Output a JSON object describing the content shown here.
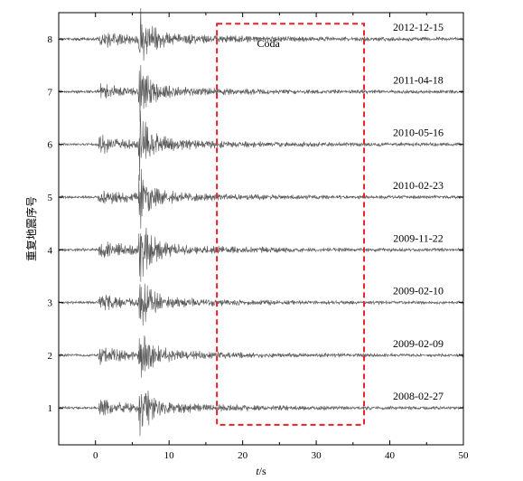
{
  "chart_data": {
    "type": "line",
    "xlabel_italic": "t",
    "xlabel_unit": "/s",
    "ylabel": "重复地震序号",
    "xlim": [
      -5,
      50
    ],
    "ylim": [
      0.3,
      8.5
    ],
    "xticks": [
      0,
      10,
      20,
      30,
      40,
      50
    ],
    "yticks": [
      1,
      2,
      3,
      4,
      5,
      6,
      7,
      8
    ],
    "grid": false,
    "colors": {
      "trace": "#555555",
      "box": "#e8202a",
      "axis": "#000000"
    },
    "annotation": {
      "text": "Coda",
      "x": 23.5,
      "y": 7.92
    },
    "coda_window": {
      "x0": 16.5,
      "x1": 36.5,
      "y0": 0.68,
      "y1": 8.29
    },
    "series": [
      {
        "id": 8,
        "date": "2012-12-15",
        "baseline": 8,
        "p_onset": 0.3,
        "s_onset": 5.8,
        "noise": 0.025,
        "amp": 0.28
      },
      {
        "id": 7,
        "date": "2011-04-18",
        "baseline": 7,
        "p_onset": 0.3,
        "s_onset": 5.8,
        "noise": 0.022,
        "amp": 0.26
      },
      {
        "id": 6,
        "date": "2010-05-16",
        "baseline": 6,
        "p_onset": 0.3,
        "s_onset": 5.8,
        "noise": 0.022,
        "amp": 0.3
      },
      {
        "id": 5,
        "date": "2010-02-23",
        "baseline": 5,
        "p_onset": 0.3,
        "s_onset": 5.8,
        "noise": 0.02,
        "amp": 0.27
      },
      {
        "id": 4,
        "date": "2009-11-22",
        "baseline": 4,
        "p_onset": 0.3,
        "s_onset": 5.8,
        "noise": 0.022,
        "amp": 0.3
      },
      {
        "id": 3,
        "date": "2009-02-10",
        "baseline": 3,
        "p_onset": 0.3,
        "s_onset": 5.8,
        "noise": 0.02,
        "amp": 0.26
      },
      {
        "id": 2,
        "date": "2009-02-09",
        "baseline": 2,
        "p_onset": 0.3,
        "s_onset": 5.8,
        "noise": 0.02,
        "amp": 0.27
      },
      {
        "id": 1,
        "date": "2008-02-27",
        "baseline": 1,
        "p_onset": 0.3,
        "s_onset": 5.8,
        "noise": 0.02,
        "amp": 0.27
      }
    ]
  }
}
